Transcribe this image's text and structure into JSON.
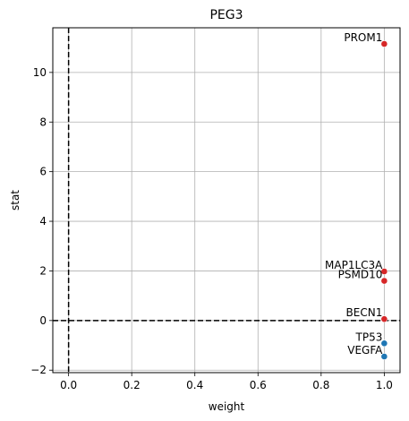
{
  "chart_data": {
    "type": "scatter",
    "title": "PEG3",
    "xlabel": "weight",
    "ylabel": "stat",
    "xlim": [
      -0.05,
      1.05
    ],
    "ylim": [
      -2.1,
      11.8
    ],
    "xticks": [
      0.0,
      0.2,
      0.4,
      0.6,
      0.8,
      1.0
    ],
    "xtick_labels": [
      "0.0",
      "0.2",
      "0.4",
      "0.6",
      "0.8",
      "1.0"
    ],
    "yticks": [
      -2,
      0,
      2,
      4,
      6,
      8,
      10
    ],
    "ytick_labels": [
      "−2",
      "0",
      "2",
      "4",
      "6",
      "8",
      "10"
    ],
    "grid": true,
    "reference_lines": {
      "x": 0,
      "y": 0,
      "style": "dashed",
      "color": "#000000"
    },
    "points": [
      {
        "label": "PROM1",
        "x": 1.0,
        "y": 11.15,
        "color": "#d62728"
      },
      {
        "label": "MAP1LC3A",
        "x": 1.0,
        "y": 1.98,
        "color": "#d62728"
      },
      {
        "label": "PSMD10",
        "x": 1.0,
        "y": 1.6,
        "color": "#d62728"
      },
      {
        "label": "BECN1",
        "x": 1.0,
        "y": 0.06,
        "color": "#d62728"
      },
      {
        "label": "TP53",
        "x": 1.0,
        "y": -0.92,
        "color": "#1f77b4"
      },
      {
        "label": "VEGFA",
        "x": 1.0,
        "y": -1.45,
        "color": "#1f77b4"
      }
    ]
  }
}
